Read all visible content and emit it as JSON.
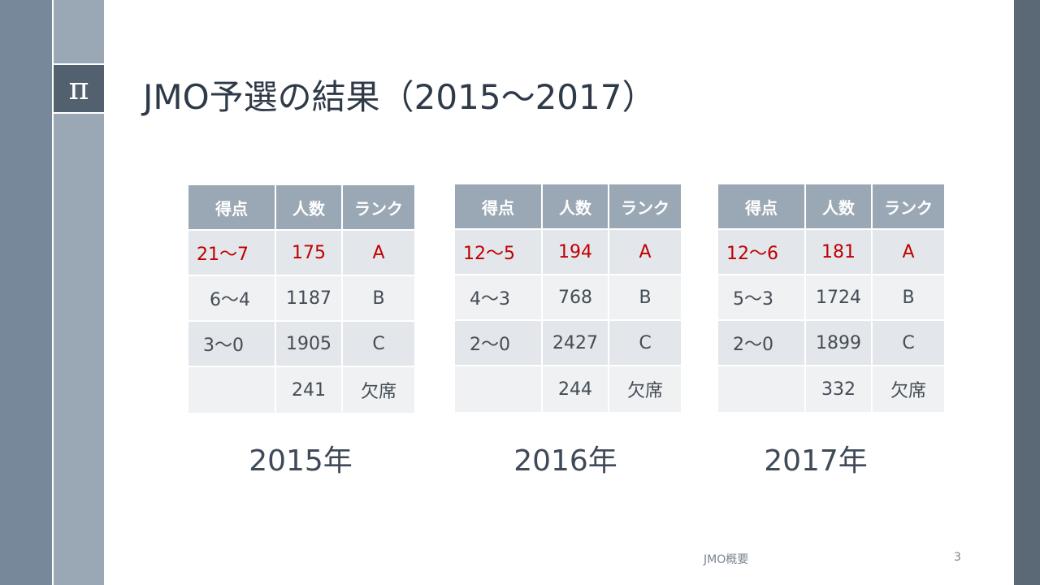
{
  "slide": {
    "logo_symbol": "π",
    "title": "JMO予選の結果（2015～2017）",
    "footer": "JMO概要",
    "page_number": "3"
  },
  "table_headers": [
    "得点",
    "人数",
    "ランク"
  ],
  "tables": [
    {
      "year_label": "2015年",
      "rows": [
        {
          "score": "21～7",
          "count": "175",
          "rank": "A"
        },
        {
          "score": "6～4",
          "count": "1187",
          "rank": "B"
        },
        {
          "score": "3～0",
          "count": "1905",
          "rank": "C"
        },
        {
          "score": "",
          "count": "241",
          "rank": "欠席"
        }
      ]
    },
    {
      "year_label": "2016年",
      "rows": [
        {
          "score": "12～5",
          "count": "194",
          "rank": "A"
        },
        {
          "score": "4～3",
          "count": "768",
          "rank": "B"
        },
        {
          "score": "2～0",
          "count": "2427",
          "rank": "C"
        },
        {
          "score": "",
          "count": "244",
          "rank": "欠席"
        }
      ]
    },
    {
      "year_label": "2017年",
      "rows": [
        {
          "score": "12～6",
          "count": "181",
          "rank": "A"
        },
        {
          "score": "5～3",
          "count": "1724",
          "rank": "B"
        },
        {
          "score": "2～0",
          "count": "1899",
          "rank": "C"
        },
        {
          "score": "",
          "count": "332",
          "rank": "欠席"
        }
      ]
    }
  ],
  "colors": {
    "highlight_text": "#c00000",
    "header_bg": "#9aa8b6",
    "accent_dark": "#536070"
  }
}
